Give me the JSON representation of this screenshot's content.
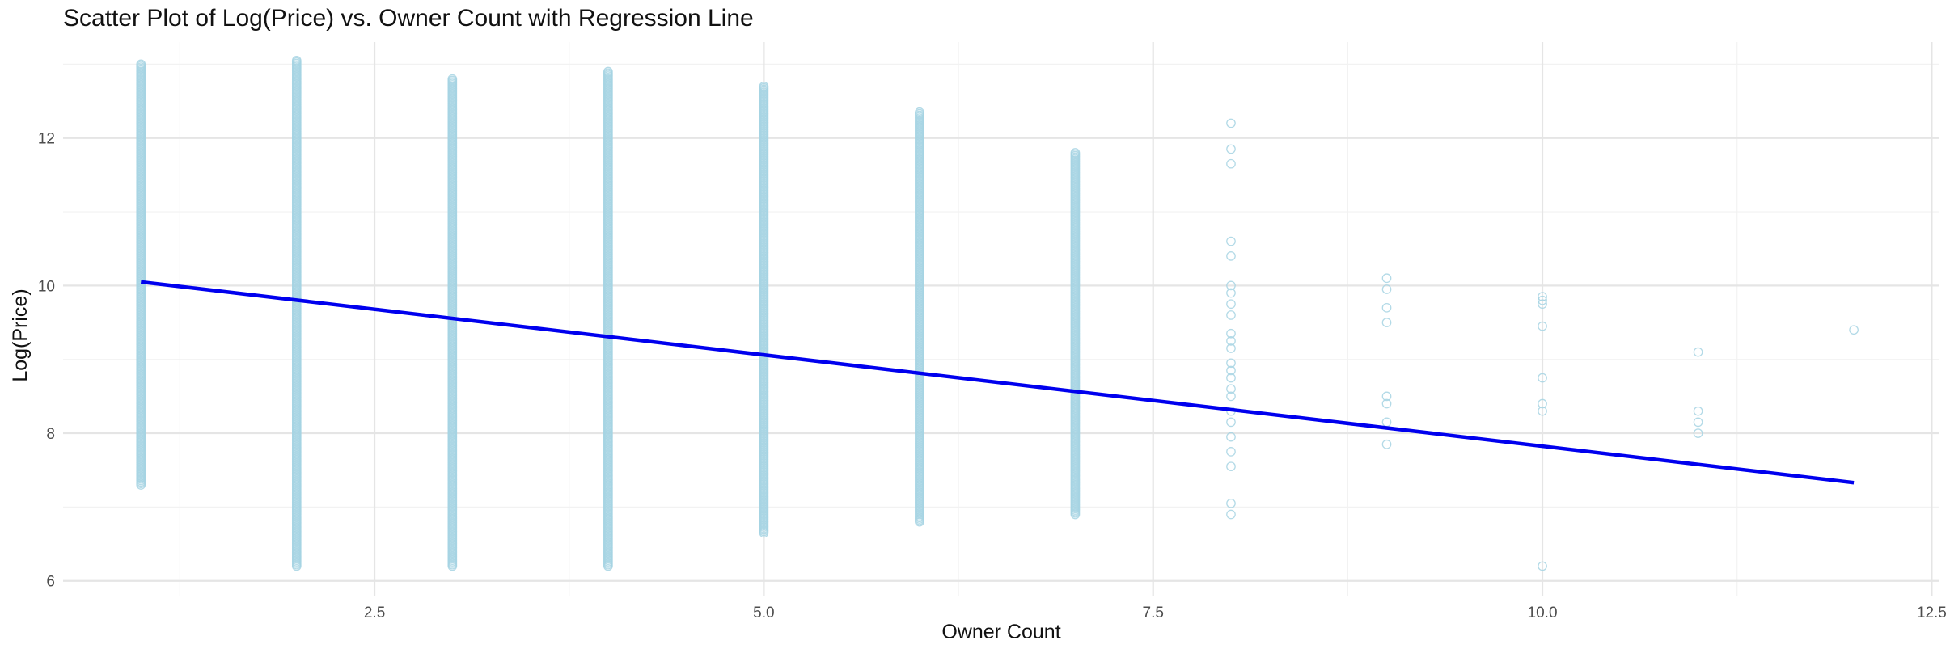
{
  "chart_data": {
    "type": "scatter",
    "title": "Scatter Plot of Log(Price) vs. Owner Count with Regression Line",
    "xlabel": "Owner Count",
    "ylabel": "Log(Price)",
    "xlim": [
      0.5,
      12.55
    ],
    "ylim": [
      5.8,
      13.3
    ],
    "x_ticks": [
      2.5,
      5.0,
      7.5,
      10.0,
      12.5
    ],
    "x_tick_labels": [
      "2.5",
      "5.0",
      "7.5",
      "10.0",
      "12.5"
    ],
    "y_ticks": [
      6,
      8,
      10,
      12
    ],
    "y_tick_labels": [
      "6",
      "8",
      "10",
      "12"
    ],
    "grid": true,
    "point_color": "#a6d3e3",
    "line_color": "#0000ee",
    "points": {
      "dense_ranges": [
        {
          "x": 1,
          "min": 7.3,
          "max": 13.0
        },
        {
          "x": 2,
          "min": 6.2,
          "max": 13.05
        },
        {
          "x": 3,
          "min": 6.2,
          "max": 12.8
        },
        {
          "x": 4,
          "min": 6.2,
          "max": 12.9
        },
        {
          "x": 5,
          "min": 6.65,
          "max": 12.7
        },
        {
          "x": 6,
          "min": 6.8,
          "max": 12.35
        },
        {
          "x": 7,
          "min": 6.9,
          "max": 11.8
        }
      ],
      "sparse": [
        {
          "x": 8,
          "y": [
            6.9,
            7.05,
            7.55,
            7.75,
            7.95,
            8.15,
            8.3,
            8.5,
            8.6,
            8.75,
            8.85,
            8.95,
            9.15,
            9.25,
            9.35,
            9.6,
            9.75,
            9.9,
            10.0,
            10.4,
            10.6,
            11.65,
            11.85,
            12.2
          ]
        },
        {
          "x": 9,
          "y": [
            7.85,
            8.15,
            8.4,
            8.5,
            9.5,
            9.7,
            9.95,
            10.1
          ]
        },
        {
          "x": 10,
          "y": [
            6.2,
            8.3,
            8.4,
            8.75,
            9.45,
            9.75,
            9.8,
            9.85
          ]
        },
        {
          "x": 11,
          "y": [
            8.0,
            8.15,
            8.3,
            9.1
          ]
        },
        {
          "x": 12,
          "y": [
            9.4
          ]
        }
      ]
    },
    "regression_line": {
      "x": [
        1,
        12
      ],
      "y": [
        10.05,
        7.33
      ]
    }
  }
}
